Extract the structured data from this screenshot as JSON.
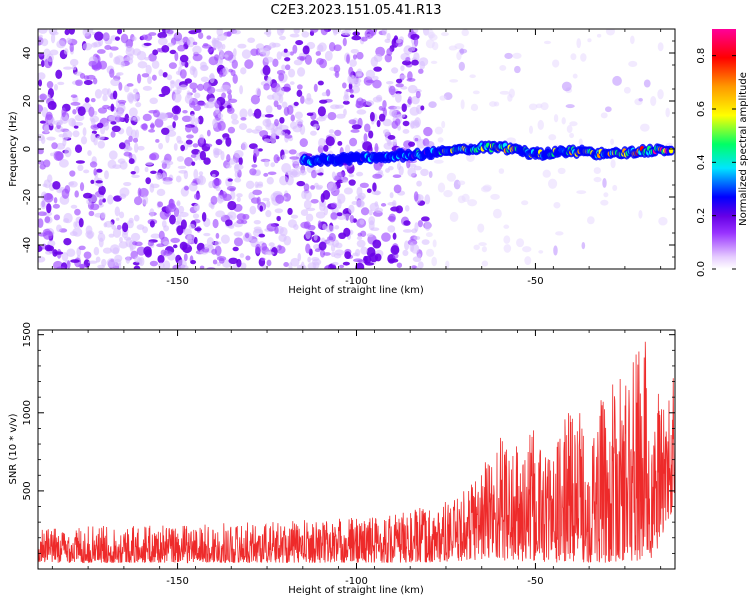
{
  "chart_data": [
    {
      "type": "heatmap",
      "title": "C2E3.2023.151.05.41.R13",
      "xlabel": "Height of straight line (km)",
      "ylabel": "Frequency (Hz)",
      "xlim": [
        -189,
        -11
      ],
      "ylim": [
        -50,
        50
      ],
      "x_ticks": [
        -150,
        -100,
        -50
      ],
      "y_ticks": [
        -40,
        -20,
        0,
        20,
        40
      ],
      "colorbar": {
        "label": "Normalized spectral amplitude",
        "range": [
          0,
          0.9
        ],
        "ticks": [
          0.0,
          0.2,
          0.4,
          0.6,
          0.8
        ],
        "colors": [
          "#ffffff",
          "#e6ccff",
          "#9933ff",
          "#6600e6",
          "#0000ff",
          "#00e5ff",
          "#00ff66",
          "#ffff00",
          "#ff9900",
          "#ff0000",
          "#ff0099"
        ]
      },
      "ridge": {
        "description_points_x": [
          -115,
          -100,
          -90,
          -80,
          -70,
          -60,
          -50,
          -40,
          -30,
          -20,
          -12
        ],
        "frequency": [
          -5,
          -4,
          -3,
          -2,
          0,
          1,
          -2,
          -1,
          -2,
          -1,
          0
        ],
        "peak_amplitude": [
          0.45,
          0.4,
          0.45,
          0.5,
          0.7,
          0.75,
          0.6,
          0.65,
          0.7,
          0.8,
          0.9
        ]
      }
    },
    {
      "type": "line",
      "xlabel": "Height of straight line (km)",
      "ylabel": "SNR (10 * v/v)",
      "xlim": [
        -189,
        -11
      ],
      "ylim": [
        0,
        1530
      ],
      "x_ticks": [
        -150,
        -100,
        -50
      ],
      "y_ticks": [
        500,
        1000,
        1500
      ],
      "series_color": "#ee2a2a",
      "envelope": {
        "x": [
          -189,
          -170,
          -150,
          -130,
          -110,
          -90,
          -80,
          -72,
          -65,
          -60,
          -55,
          -50,
          -45,
          -40,
          -35,
          -30,
          -25,
          -21,
          -19,
          -17,
          -15,
          -13,
          -11
        ],
        "low": [
          40,
          40,
          40,
          40,
          40,
          40,
          40,
          50,
          60,
          60,
          40,
          50,
          40,
          50,
          40,
          40,
          50,
          40,
          60,
          50,
          200,
          300,
          400
        ],
        "high": [
          260,
          280,
          280,
          300,
          320,
          360,
          400,
          450,
          700,
          900,
          800,
          900,
          750,
          1100,
          950,
          1150,
          1250,
          1500,
          1530,
          900,
          1250,
          1050,
          1350
        ]
      }
    }
  ]
}
